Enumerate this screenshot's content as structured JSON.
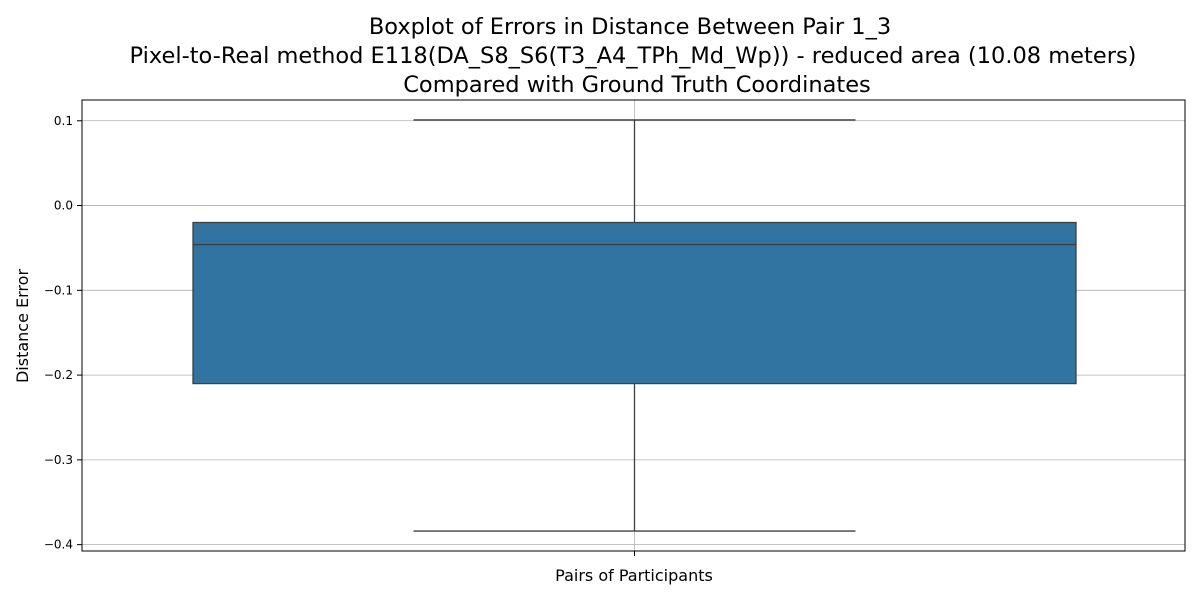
{
  "chart_data": {
    "type": "boxplot",
    "title": [
      "Boxplot of Errors in Distance Between Pair 1_3",
      "Pixel-to-Real method E118(DA_S8_S6(T3_A4_TPh_Md_Wp)) - reduced area (10.08 meters)",
      "Compared with Ground Truth Coordinates"
    ],
    "xlabel": "Pairs of Participants",
    "ylabel": "Distance Error",
    "ylim": [
      -0.4075,
      0.1245
    ],
    "yticks": [
      {
        "value": 0.1,
        "label": "0.1"
      },
      {
        "value": 0.0,
        "label": "0.0"
      },
      {
        "value": -0.1,
        "label": "−0.1"
      },
      {
        "value": -0.2,
        "label": "−0.2"
      },
      {
        "value": -0.3,
        "label": "−0.3"
      },
      {
        "value": -0.4,
        "label": "−0.4"
      }
    ],
    "grid": true,
    "boxes": [
      {
        "whisker_low": -0.384,
        "q1": -0.21,
        "median": -0.046,
        "q3": -0.02,
        "whisker_high": 0.101,
        "color": "#3274a1"
      }
    ]
  }
}
